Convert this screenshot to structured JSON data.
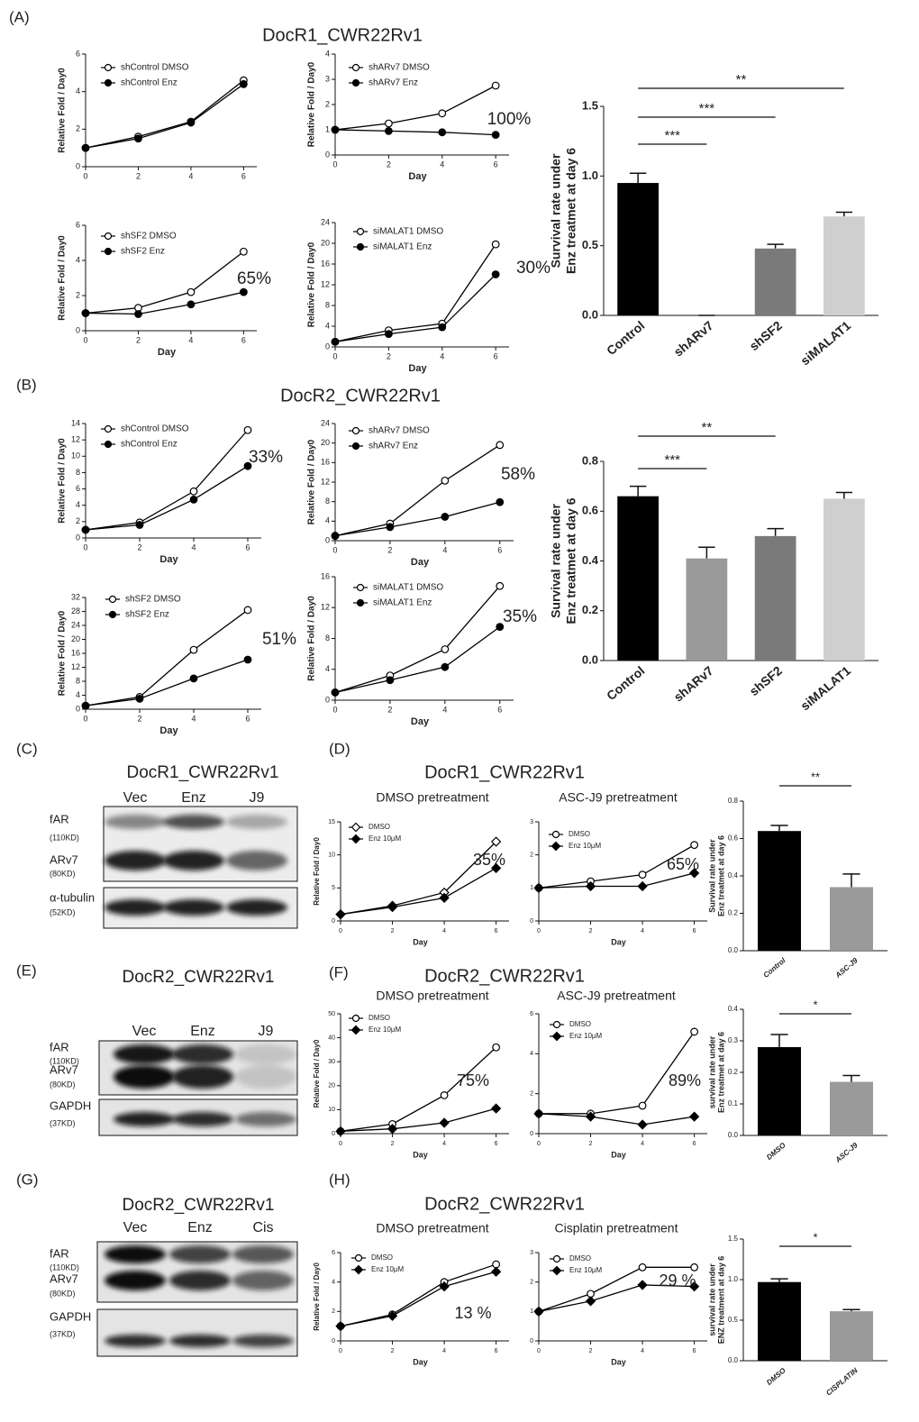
{
  "panel_labels": [
    "(A)",
    "(B)",
    "(C)",
    "(D)",
    "(E)",
    "(F)",
    "(G)",
    "(H)"
  ],
  "headings": [
    "DocR1_CWR22Rv1",
    "DocR2_CWR22Rv1",
    "DocR1_CWR22Rv1",
    "DocR2_CWR22Rv1",
    "DocR2_CWR22Rv1"
  ],
  "blots": [
    {
      "title": "DocR1_CWR22Rv1",
      "lanes": [
        "Vec",
        "Enz",
        "J9"
      ],
      "rows": [
        [
          "fAR",
          "(110KD)"
        ],
        [
          "ARv7",
          "(80KD)"
        ],
        [
          "α-tubulin",
          "(52KD)"
        ]
      ]
    },
    {
      "title": "DocR2_CWR22Rv1",
      "lanes": [
        "Vec",
        "Enz",
        "J9"
      ],
      "rows": [
        [
          "fAR",
          "(110KD)"
        ],
        [
          "ARv7",
          "(80KD)"
        ],
        [
          "GAPDH",
          "(37KD)"
        ]
      ]
    },
    {
      "title": "DocR2_CWR22Rv1",
      "lanes": [
        "Vec",
        "Enz",
        "Cis"
      ],
      "rows": [
        [
          "fAR",
          "(110KD)"
        ],
        [
          "ARv7",
          "(80KD)"
        ],
        [
          "GAPDH",
          "(37KD)"
        ]
      ]
    }
  ],
  "chart_data": [
    {
      "type": "line",
      "x": [
        0,
        2,
        4,
        6
      ],
      "xlim": [
        0,
        6.5
      ],
      "xticks": [
        0,
        2,
        4,
        6
      ],
      "ylim": [
        0,
        6
      ],
      "yticks": [
        0,
        2,
        4,
        6
      ],
      "ylabel": "Relative Fold  / Day0",
      "series": [
        {
          "name": "shControl DMSO",
          "color": "#000000",
          "marker": "open",
          "values": [
            1,
            1.6,
            2.4,
            4.6
          ]
        },
        {
          "name": "shControl Enz",
          "color": "#000000",
          "marker": "filled",
          "values": [
            1,
            1.5,
            2.35,
            4.4
          ]
        }
      ]
    },
    {
      "type": "line",
      "x": [
        0,
        2,
        4,
        6
      ],
      "xlim": [
        0,
        6.5
      ],
      "xticks": [
        0,
        2,
        4,
        6
      ],
      "ylim": [
        0,
        4
      ],
      "yticks": [
        0,
        1,
        2,
        3,
        4
      ],
      "xlabel": "Day",
      "ylabel": "Relative Fold  / Day0",
      "annotation": "100%",
      "series": [
        {
          "name": "shARv7 DMSO",
          "color": "#000000",
          "marker": "open",
          "values": [
            1,
            1.25,
            1.65,
            2.75
          ]
        },
        {
          "name": "shARv7 Enz",
          "color": "#000000",
          "marker": "filled",
          "values": [
            1,
            0.95,
            0.9,
            0.8
          ]
        }
      ]
    },
    {
      "type": "line",
      "x": [
        0,
        2,
        4,
        6
      ],
      "xlim": [
        0,
        6.5
      ],
      "xticks": [
        0,
        2,
        4,
        6
      ],
      "ylim": [
        0,
        6
      ],
      "yticks": [
        0,
        2,
        4,
        6
      ],
      "xlabel": "Day",
      "ylabel": "Relative Fold  / Day0",
      "annotation": "65%",
      "series": [
        {
          "name": "shSF2 DMSO",
          "color": "#000000",
          "marker": "open",
          "values": [
            1,
            1.3,
            2.2,
            4.5
          ]
        },
        {
          "name": "shSF2 Enz",
          "color": "#000000",
          "marker": "filled",
          "values": [
            1,
            0.95,
            1.5,
            2.2
          ]
        }
      ]
    },
    {
      "type": "line",
      "x": [
        0,
        2,
        4,
        6
      ],
      "xlim": [
        0,
        6.5
      ],
      "xticks": [
        0,
        2,
        4,
        6
      ],
      "ylim": [
        0,
        24
      ],
      "yticks": [
        0,
        4,
        8,
        12,
        16,
        20,
        24
      ],
      "xlabel": "Day",
      "ylabel": "Relative Fold  / Day0",
      "annotation": "30%",
      "series": [
        {
          "name": "siMALAT1 DMSO",
          "color": "#000000",
          "marker": "open",
          "values": [
            1,
            3.2,
            4.5,
            19.8
          ]
        },
        {
          "name": "siMALAT1 Enz",
          "color": "#000000",
          "marker": "filled",
          "values": [
            1,
            2.5,
            3.8,
            14
          ]
        }
      ]
    },
    {
      "type": "bar",
      "categories": [
        "Control",
        "shARv7",
        "shSF2",
        "siMALAT1"
      ],
      "values": [
        0.95,
        0,
        0.48,
        0.71
      ],
      "errors": [
        0.07,
        0,
        0.03,
        0.03
      ],
      "colors": [
        "#000000",
        "#000000",
        "#7a7a7a",
        "#cfcfcf"
      ],
      "ylim": [
        0,
        1.5
      ],
      "yticks": [
        {
          "value": 0,
          "label": "0.0"
        },
        {
          "value": 0.5,
          "label": "0.5"
        },
        {
          "value": 1,
          "label": "1.0"
        },
        {
          "value": 1.5,
          "label": "1.5"
        }
      ],
      "ylabel": [
        "Survival rate under",
        "Enz treatmet at day 6"
      ],
      "brackets": [
        {
          "text": "***",
          "from": "Control",
          "to": "shARv7"
        },
        {
          "text": "***",
          "from": "Control",
          "to": "shSF2"
        },
        {
          "text": "**",
          "from": "Control",
          "to": "siMALAT1"
        }
      ]
    },
    {
      "type": "line",
      "x": [
        0,
        2,
        4,
        6
      ],
      "xlim": [
        0,
        6.5
      ],
      "xticks": [
        0,
        2,
        4,
        6
      ],
      "ylim": [
        0,
        14
      ],
      "yticks": [
        0,
        2,
        4,
        6,
        8,
        10,
        12,
        14
      ],
      "xlabel": "Day",
      "ylabel": "Relative Fold  / Day0",
      "annotation": "33%",
      "series": [
        {
          "name": "shControl DMSO",
          "color": "#000000",
          "marker": "open",
          "values": [
            1,
            1.9,
            5.7,
            13.2
          ]
        },
        {
          "name": "shControl Enz",
          "color": "#000000",
          "marker": "filled",
          "values": [
            1,
            1.6,
            4.7,
            8.8
          ]
        }
      ]
    },
    {
      "type": "line",
      "x": [
        0,
        2,
        4,
        6
      ],
      "xlim": [
        0,
        6.5
      ],
      "xticks": [
        0,
        2,
        4,
        6
      ],
      "ylim": [
        0,
        24
      ],
      "yticks": [
        0,
        4,
        8,
        12,
        16,
        20,
        24
      ],
      "xlabel": "Day",
      "ylabel": "Relative Fold  / Day0",
      "annotation": "58%",
      "series": [
        {
          "name": "shARv7 DMSO",
          "color": "#000000",
          "marker": "open",
          "values": [
            1,
            3.5,
            12.3,
            19.6
          ]
        },
        {
          "name": "shARv7 Enz",
          "color": "#000000",
          "marker": "filled",
          "values": [
            1,
            2.8,
            4.9,
            7.9
          ]
        }
      ]
    },
    {
      "type": "line",
      "x": [
        0,
        2,
        4,
        6
      ],
      "xlim": [
        0,
        6.5
      ],
      "xticks": [
        0,
        2,
        4,
        6
      ],
      "ylim": [
        0,
        32
      ],
      "yticks": [
        0,
        4,
        8,
        12,
        16,
        20,
        24,
        28,
        32
      ],
      "xlabel": "Day",
      "ylabel": "Relative Fold  / Day0",
      "annotation": "51%",
      "series": [
        {
          "name": "shSF2 DMSO",
          "color": "#000000",
          "marker": "open",
          "values": [
            1,
            3.5,
            17,
            28.4
          ]
        },
        {
          "name": "shSF2 Enz",
          "color": "#000000",
          "marker": "filled",
          "values": [
            1,
            3,
            8.8,
            14.2
          ]
        }
      ]
    },
    {
      "type": "line",
      "x": [
        0,
        2,
        4,
        6
      ],
      "xlim": [
        0,
        6.5
      ],
      "xticks": [
        0,
        2,
        4,
        6
      ],
      "ylim": [
        0,
        16
      ],
      "yticks": [
        0,
        4,
        8,
        12,
        16
      ],
      "xlabel": "Day",
      "ylabel": "Relative Fold  / Day0",
      "annotation": "35%",
      "series": [
        {
          "name": "siMALAT1 DMSO",
          "color": "#000000",
          "marker": "open",
          "values": [
            1,
            3.2,
            6.6,
            14.8
          ]
        },
        {
          "name": "siMALAT1 Enz",
          "color": "#000000",
          "marker": "filled",
          "values": [
            1,
            2.6,
            4.3,
            9.5
          ]
        }
      ]
    },
    {
      "type": "bar",
      "categories": [
        "Control",
        "shARv7",
        "shSF2",
        "siMALAT1"
      ],
      "values": [
        0.66,
        0.41,
        0.5,
        0.65
      ],
      "errors": [
        0.04,
        0.045,
        0.03,
        0.025
      ],
      "colors": [
        "#000000",
        "#9a9a9a",
        "#7a7a7a",
        "#cfcfcf"
      ],
      "ylim": [
        0,
        0.8
      ],
      "yticks": [
        {
          "value": 0,
          "label": "0.0"
        },
        0.2,
        0.4,
        0.6,
        0.8
      ],
      "ylabel": [
        "Survival rate under",
        "Enz treatmet at day 6"
      ],
      "brackets": [
        {
          "text": "***",
          "from": "Control",
          "to": "shARv7"
        },
        {
          "text": "**",
          "from": "Control",
          "to": "shSF2"
        }
      ]
    },
    {
      "type": "line",
      "title": "DMSO  pretreatment",
      "x": [
        0,
        2,
        4,
        6
      ],
      "xlim": [
        0,
        6.5
      ],
      "xticks": [
        0,
        2,
        4,
        6
      ],
      "ylim": [
        0,
        15
      ],
      "yticks": [
        0,
        5,
        10,
        15
      ],
      "xlabel": "Day",
      "ylabel": "Relative Fold / Day0",
      "annotation": "35%",
      "series": [
        {
          "name": "DMSO",
          "color": "#000000",
          "marker": "open-diamond",
          "values": [
            1,
            2.3,
            4.3,
            12
          ]
        },
        {
          "name": "Enz 10μM",
          "color": "#000000",
          "marker": "filled-diamond",
          "values": [
            1,
            2.1,
            3.5,
            8
          ]
        }
      ]
    },
    {
      "type": "line",
      "title": "ASC-J9 pretreatment",
      "x": [
        0,
        2,
        4,
        6
      ],
      "xlim": [
        0,
        6.5
      ],
      "xticks": [
        0,
        2,
        4,
        6
      ],
      "ylim": [
        0,
        3
      ],
      "yticks": [
        0,
        1,
        2,
        3
      ],
      "xlabel": "Day",
      "annotation": "65%",
      "series": [
        {
          "name": "DMSO",
          "color": "#000000",
          "marker": "open",
          "values": [
            1,
            1.2,
            1.4,
            2.3
          ]
        },
        {
          "name": "Enz 10μM",
          "color": "#000000",
          "marker": "filled-diamond",
          "values": [
            1,
            1.05,
            1.05,
            1.45
          ]
        }
      ]
    },
    {
      "type": "bar",
      "categories": [
        "Control",
        "ASC-J9"
      ],
      "values": [
        0.64,
        0.34
      ],
      "errors": [
        0.03,
        0.07
      ],
      "colors": [
        "#000000",
        "#9a9a9a"
      ],
      "ylim": [
        0,
        0.8
      ],
      "yticks": [
        {
          "value": 0,
          "label": "0.0"
        },
        0.2,
        0.4,
        0.6,
        0.8
      ],
      "ylabel": [
        "Survival rate under",
        "Enz treatmet at day 6"
      ],
      "brackets": [
        {
          "text": "**",
          "from": "Control",
          "to": "ASC-J9"
        }
      ]
    },
    {
      "type": "line",
      "title": "DMSO  pretreatment",
      "x": [
        0,
        2,
        4,
        6
      ],
      "xlim": [
        0,
        6.5
      ],
      "xticks": [
        0,
        2,
        4,
        6
      ],
      "ylim": [
        0,
        50
      ],
      "yticks": [
        0,
        10,
        20,
        30,
        40,
        50
      ],
      "xlabel": "Day",
      "ylabel": "Relative Fold / Day0",
      "annotation": "75%",
      "series": [
        {
          "name": "DMSO",
          "color": "#000000",
          "marker": "open",
          "values": [
            1,
            4,
            16,
            36
          ]
        },
        {
          "name": "Enz 10μM",
          "color": "#000000",
          "marker": "filled-diamond",
          "values": [
            1,
            2,
            4.5,
            10.5
          ]
        }
      ]
    },
    {
      "type": "line",
      "title": "ASC-J9 pretreatment",
      "x": [
        0,
        2,
        4,
        6
      ],
      "xlim": [
        0,
        6.5
      ],
      "xticks": [
        0,
        2,
        4,
        6
      ],
      "ylim": [
        0,
        6
      ],
      "yticks": [
        0,
        2,
        4,
        6
      ],
      "xlabel": "Day",
      "annotation": "89%",
      "series": [
        {
          "name": "DMSO",
          "color": "#000000",
          "marker": "open",
          "values": [
            1,
            1,
            1.4,
            5.1
          ]
        },
        {
          "name": "Enz 10μM",
          "color": "#000000",
          "marker": "filled-diamond",
          "values": [
            1,
            0.85,
            0.45,
            0.85
          ]
        }
      ]
    },
    {
      "type": "bar",
      "categories": [
        "DMSO",
        "ASC-J9"
      ],
      "values": [
        0.28,
        0.17
      ],
      "errors": [
        0.04,
        0.02
      ],
      "colors": [
        "#000000",
        "#9a9a9a"
      ],
      "ylim": [
        0,
        0.4
      ],
      "yticks": [
        {
          "value": 0,
          "label": "0.0"
        },
        0.1,
        0.2,
        0.3,
        0.4
      ],
      "ylabel": [
        "survival rate under",
        "Enz treatmet at day 6"
      ],
      "brackets": [
        {
          "text": "*",
          "from": "DMSO",
          "to": "ASC-J9"
        }
      ]
    },
    {
      "type": "line",
      "title": "DMSO  pretreatment",
      "x": [
        0,
        2,
        4,
        6
      ],
      "xlim": [
        0,
        6.5
      ],
      "xticks": [
        0,
        2,
        4,
        6
      ],
      "ylim": [
        0,
        6
      ],
      "yticks": [
        0,
        2,
        4,
        6
      ],
      "xlabel": "Day",
      "ylabel": "Relative Fold / Day0",
      "annotation": "13 %",
      "series": [
        {
          "name": "DMSO",
          "color": "#000000",
          "marker": "open",
          "values": [
            1,
            1.8,
            4,
            5.2
          ]
        },
        {
          "name": "Enz 10μM",
          "color": "#000000",
          "marker": "filled-diamond",
          "values": [
            1,
            1.7,
            3.7,
            4.7
          ]
        }
      ]
    },
    {
      "type": "line",
      "title": "Cisplatin pretreatment",
      "x": [
        0,
        2,
        4,
        6
      ],
      "xlim": [
        0,
        6.5
      ],
      "xticks": [
        0,
        2,
        4,
        6
      ],
      "ylim": [
        0,
        3
      ],
      "yticks": [
        0,
        1,
        2,
        3
      ],
      "xlabel": "Day",
      "annotation": "29 %",
      "series": [
        {
          "name": "DMSO",
          "color": "#000000",
          "marker": "open",
          "values": [
            1,
            1.6,
            2.5,
            2.5
          ]
        },
        {
          "name": "Enz 10μM",
          "color": "#000000",
          "marker": "filled-diamond",
          "values": [
            1,
            1.35,
            1.9,
            1.85
          ]
        }
      ]
    },
    {
      "type": "bar",
      "categories": [
        "DMSO",
        "CISPLATIN"
      ],
      "values": [
        0.97,
        0.61
      ],
      "errors": [
        0.04,
        0.02
      ],
      "colors": [
        "#000000",
        "#9a9a9a"
      ],
      "ylim": [
        0,
        1.5
      ],
      "yticks": [
        {
          "value": 0,
          "label": "0.0"
        },
        {
          "value": 0.5,
          "label": "0.5"
        },
        {
          "value": 1,
          "label": "1.0"
        },
        {
          "value": 1.5,
          "label": "1.5"
        }
      ],
      "ylabel": [
        "survival rate under",
        "ENZ treatment at day 6"
      ],
      "brackets": [
        {
          "text": "*",
          "from": "DMSO",
          "to": "CISPLATIN"
        }
      ]
    }
  ]
}
